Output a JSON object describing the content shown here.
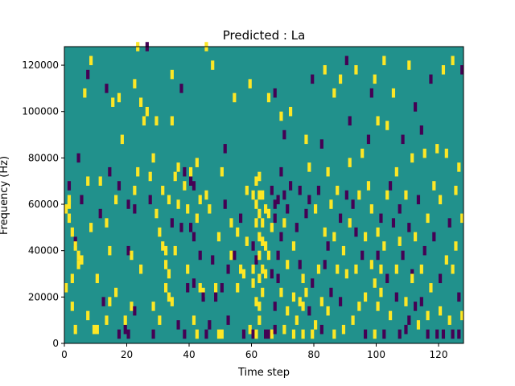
{
  "chart_data": {
    "type": "heatmap",
    "title": "Predicted : La",
    "xlabel": "Time step",
    "ylabel": "Frequency (Hz)",
    "xlim": [
      0,
      128
    ],
    "ylim": [
      0,
      128000
    ],
    "x_ticks": [
      "0",
      "20",
      "40",
      "60",
      "80",
      "100",
      "120"
    ],
    "x_tick_values": [
      0,
      20,
      40,
      60,
      80,
      100,
      120
    ],
    "y_ticks": [
      "0",
      "20000",
      "40000",
      "60000",
      "80000",
      "100000",
      "120000"
    ],
    "y_tick_values": [
      0,
      20000,
      40000,
      60000,
      80000,
      100000,
      120000
    ],
    "grid": false,
    "colormap": {
      "-1": "#440154",
      "0": "#21918c",
      "1": "#fde725"
    },
    "background_value": 0,
    "bin_height_hz": 1000,
    "cells": [
      [
        0,
        22,
        1
      ],
      [
        0,
        56,
        1
      ],
      [
        1,
        58,
        1
      ],
      [
        1,
        60,
        1
      ],
      [
        1,
        66,
        -1
      ],
      [
        1,
        52,
        1
      ],
      [
        2,
        46,
        1
      ],
      [
        2,
        26,
        1
      ],
      [
        2,
        14,
        1
      ],
      [
        3,
        42,
        -1
      ],
      [
        3,
        40,
        1
      ],
      [
        3,
        4,
        1
      ],
      [
        4,
        32,
        1
      ],
      [
        4,
        36,
        1
      ],
      [
        4,
        78,
        -1
      ],
      [
        5,
        60,
        -1
      ],
      [
        5,
        34,
        1
      ],
      [
        6,
        106,
        1
      ],
      [
        7,
        114,
        -1
      ],
      [
        7,
        68,
        1
      ],
      [
        7,
        10,
        1
      ],
      [
        8,
        120,
        1
      ],
      [
        8,
        48,
        1
      ],
      [
        9,
        4,
        1
      ],
      [
        10,
        4,
        1
      ],
      [
        10,
        26,
        1
      ],
      [
        11,
        68,
        1
      ],
      [
        11,
        54,
        -1
      ],
      [
        12,
        16,
        -1
      ],
      [
        13,
        108,
        -1
      ],
      [
        13,
        50,
        1
      ],
      [
        13,
        8,
        1
      ],
      [
        14,
        72,
        -1
      ],
      [
        14,
        38,
        1
      ],
      [
        14,
        16,
        1
      ],
      [
        15,
        102,
        1
      ],
      [
        16,
        60,
        1
      ],
      [
        16,
        20,
        1
      ],
      [
        17,
        2,
        -1
      ],
      [
        17,
        66,
        -1
      ],
      [
        17,
        104,
        1
      ],
      [
        18,
        86,
        1
      ],
      [
        19,
        4,
        -1
      ],
      [
        19,
        8,
        1
      ],
      [
        20,
        2,
        -1
      ],
      [
        20,
        58,
        -1
      ],
      [
        20,
        38,
        -1
      ],
      [
        21,
        36,
        1
      ],
      [
        21,
        14,
        1
      ],
      [
        22,
        12,
        -1
      ],
      [
        22,
        64,
        1
      ],
      [
        22,
        110,
        1
      ],
      [
        22,
        56,
        -1
      ],
      [
        23,
        126,
        1
      ],
      [
        23,
        72,
        1
      ],
      [
        24,
        30,
        1
      ],
      [
        24,
        102,
        1
      ],
      [
        25,
        94,
        1
      ],
      [
        26,
        98,
        1
      ],
      [
        26,
        126,
        -1
      ],
      [
        27,
        70,
        1
      ],
      [
        27,
        60,
        -1
      ],
      [
        28,
        14,
        1
      ],
      [
        28,
        78,
        1
      ],
      [
        28,
        2,
        -1
      ],
      [
        29,
        94,
        1
      ],
      [
        29,
        54,
        1
      ],
      [
        30,
        8,
        1
      ],
      [
        30,
        46,
        1
      ],
      [
        31,
        64,
        1
      ],
      [
        31,
        40,
        1
      ],
      [
        32,
        38,
        1
      ],
      [
        32,
        22,
        1
      ],
      [
        32,
        32,
        1
      ],
      [
        33,
        18,
        1
      ],
      [
        33,
        60,
        1
      ],
      [
        33,
        28,
        1
      ],
      [
        34,
        94,
        1
      ],
      [
        34,
        50,
        -1
      ],
      [
        34,
        16,
        1
      ],
      [
        34,
        114,
        1
      ],
      [
        35,
        70,
        1
      ],
      [
        35,
        38,
        1
      ],
      [
        36,
        58,
        1
      ],
      [
        36,
        74,
        1
      ],
      [
        36,
        6,
        -1
      ],
      [
        37,
        108,
        -1
      ],
      [
        37,
        48,
        -1
      ],
      [
        38,
        72,
        -1
      ],
      [
        38,
        66,
        1
      ],
      [
        38,
        2,
        -1
      ],
      [
        39,
        22,
        -1
      ],
      [
        39,
        56,
        1
      ],
      [
        39,
        30,
        1
      ],
      [
        40,
        68,
        -1
      ],
      [
        40,
        48,
        -1
      ],
      [
        40,
        72,
        1
      ],
      [
        41,
        66,
        -1
      ],
      [
        41,
        24,
        -1
      ],
      [
        41,
        8,
        1
      ],
      [
        41,
        44,
        -1
      ],
      [
        42,
        76,
        1
      ],
      [
        42,
        2,
        1
      ],
      [
        42,
        52,
        1
      ],
      [
        43,
        36,
        -1
      ],
      [
        43,
        22,
        1
      ],
      [
        43,
        60,
        1
      ],
      [
        44,
        20,
        1
      ],
      [
        44,
        18,
        -1
      ],
      [
        45,
        2,
        -1
      ],
      [
        45,
        126,
        1
      ],
      [
        45,
        62,
        1
      ],
      [
        46,
        56,
        1
      ],
      [
        46,
        6,
        -1
      ],
      [
        47,
        118,
        1
      ],
      [
        47,
        34,
        -1
      ],
      [
        48,
        22,
        1
      ],
      [
        48,
        18,
        -1
      ],
      [
        49,
        2,
        1
      ],
      [
        49,
        44,
        1
      ],
      [
        50,
        72,
        1
      ],
      [
        50,
        2,
        1
      ],
      [
        50,
        22,
        -1
      ],
      [
        51,
        82,
        -1
      ],
      [
        51,
        58,
        -1
      ],
      [
        52,
        8,
        -1
      ],
      [
        52,
        30,
        -1
      ],
      [
        53,
        50,
        1
      ],
      [
        53,
        36,
        1
      ],
      [
        54,
        104,
        1
      ],
      [
        54,
        36,
        -1
      ],
      [
        55,
        22,
        1
      ],
      [
        55,
        46,
        1
      ],
      [
        56,
        30,
        1
      ],
      [
        56,
        52,
        -1
      ],
      [
        57,
        2,
        -1
      ],
      [
        57,
        28,
        1
      ],
      [
        58,
        64,
        1
      ],
      [
        58,
        42,
        1
      ],
      [
        59,
        110,
        1
      ],
      [
        59,
        4,
        1
      ],
      [
        60,
        62,
        1
      ],
      [
        60,
        2,
        -1
      ],
      [
        60,
        40,
        -1
      ],
      [
        60,
        24,
        1
      ],
      [
        60,
        30,
        1
      ],
      [
        61,
        68,
        1
      ],
      [
        61,
        58,
        1
      ],
      [
        61,
        50,
        1
      ],
      [
        61,
        34,
        -1
      ],
      [
        61,
        16,
        1
      ],
      [
        61,
        2,
        1
      ],
      [
        62,
        70,
        1
      ],
      [
        62,
        62,
        1
      ],
      [
        62,
        54,
        1
      ],
      [
        62,
        44,
        1
      ],
      [
        62,
        36,
        1
      ],
      [
        62,
        26,
        1
      ],
      [
        62,
        14,
        1
      ],
      [
        62,
        8,
        1
      ],
      [
        63,
        62,
        1
      ],
      [
        63,
        50,
        1
      ],
      [
        63,
        42,
        1
      ],
      [
        63,
        30,
        1
      ],
      [
        63,
        20,
        1
      ],
      [
        64,
        2,
        -1
      ],
      [
        64,
        56,
        1
      ],
      [
        64,
        40,
        1
      ],
      [
        64,
        28,
        1
      ],
      [
        65,
        54,
        1
      ],
      [
        65,
        36,
        1
      ],
      [
        65,
        104,
        1
      ],
      [
        65,
        2,
        -1
      ],
      [
        66,
        64,
        -1
      ],
      [
        66,
        48,
        1
      ],
      [
        66,
        28,
        -1
      ],
      [
        66,
        2,
        1
      ],
      [
        67,
        58,
        -1
      ],
      [
        67,
        14,
        -1
      ],
      [
        67,
        52,
        -1
      ],
      [
        67,
        106,
        -1
      ],
      [
        67,
        4,
        -1
      ],
      [
        68,
        36,
        -1
      ],
      [
        68,
        60,
        -1
      ],
      [
        68,
        26,
        -1
      ],
      [
        69,
        72,
        -1
      ],
      [
        69,
        44,
        -1
      ],
      [
        69,
        96,
        1
      ],
      [
        69,
        20,
        1
      ],
      [
        70,
        62,
        -1
      ],
      [
        70,
        4,
        1
      ],
      [
        70,
        50,
        1
      ],
      [
        70,
        88,
        -1
      ],
      [
        71,
        12,
        1
      ],
      [
        71,
        56,
        -1
      ],
      [
        71,
        32,
        1
      ],
      [
        72,
        66,
        -1
      ],
      [
        72,
        98,
        1
      ],
      [
        73,
        2,
        1
      ],
      [
        73,
        40,
        1
      ],
      [
        73,
        18,
        1
      ],
      [
        74,
        48,
        -1
      ],
      [
        74,
        8,
        1
      ],
      [
        75,
        64,
        -1
      ],
      [
        75,
        32,
        -1
      ],
      [
        75,
        16,
        1
      ],
      [
        76,
        2,
        1
      ],
      [
        76,
        14,
        1
      ],
      [
        76,
        26,
        1
      ],
      [
        77,
        20,
        1
      ],
      [
        77,
        86,
        1
      ],
      [
        77,
        54,
        -1
      ],
      [
        78,
        12,
        -1
      ],
      [
        78,
        74,
        1
      ],
      [
        78,
        60,
        -1
      ],
      [
        79,
        2,
        1
      ],
      [
        79,
        24,
        -1
      ],
      [
        79,
        112,
        -1
      ],
      [
        80,
        56,
        1
      ],
      [
        80,
        6,
        1
      ],
      [
        81,
        30,
        1
      ],
      [
        81,
        64,
        -1
      ],
      [
        82,
        16,
        1
      ],
      [
        82,
        84,
        -1
      ],
      [
        82,
        4,
        -1
      ],
      [
        83,
        46,
        1
      ],
      [
        83,
        116,
        1
      ],
      [
        83,
        32,
        -1
      ],
      [
        84,
        40,
        -1
      ],
      [
        84,
        72,
        1
      ],
      [
        84,
        12,
        1
      ],
      [
        85,
        20,
        -1
      ],
      [
        85,
        58,
        1
      ],
      [
        86,
        106,
        1
      ],
      [
        86,
        2,
        1
      ],
      [
        86,
        44,
        1
      ],
      [
        87,
        30,
        1
      ],
      [
        87,
        64,
        1
      ],
      [
        88,
        112,
        1
      ],
      [
        88,
        52,
        -1
      ],
      [
        88,
        16,
        -1
      ],
      [
        89,
        4,
        1
      ],
      [
        89,
        38,
        1
      ],
      [
        90,
        62,
        -1
      ],
      [
        90,
        28,
        1
      ],
      [
        90,
        120,
        -1
      ],
      [
        91,
        94,
        -1
      ],
      [
        91,
        50,
        1
      ],
      [
        91,
        76,
        1
      ],
      [
        92,
        8,
        1
      ],
      [
        92,
        58,
        -1
      ],
      [
        93,
        116,
        1
      ],
      [
        93,
        30,
        1
      ],
      [
        93,
        46,
        -1
      ],
      [
        94,
        62,
        1
      ],
      [
        94,
        14,
        1
      ],
      [
        95,
        36,
        -1
      ],
      [
        95,
        80,
        1
      ],
      [
        96,
        2,
        -1
      ],
      [
        96,
        18,
        1
      ],
      [
        96,
        44,
        1
      ],
      [
        97,
        86,
        -1
      ],
      [
        97,
        66,
        1
      ],
      [
        98,
        106,
        -1
      ],
      [
        98,
        56,
        1
      ],
      [
        98,
        32,
        1
      ],
      [
        99,
        112,
        1
      ],
      [
        99,
        24,
        1
      ],
      [
        99,
        2,
        1
      ],
      [
        100,
        46,
        1
      ],
      [
        100,
        94,
        1
      ],
      [
        100,
        36,
        -1
      ],
      [
        100,
        14,
        1
      ],
      [
        101,
        20,
        1
      ],
      [
        101,
        52,
        -1
      ],
      [
        101,
        30,
        1
      ],
      [
        102,
        120,
        1
      ],
      [
        102,
        2,
        -1
      ],
      [
        102,
        40,
        1
      ],
      [
        103,
        92,
        1
      ],
      [
        103,
        62,
        1
      ],
      [
        103,
        26,
        -1
      ],
      [
        104,
        10,
        1
      ],
      [
        104,
        66,
        -1
      ],
      [
        105,
        106,
        1
      ],
      [
        105,
        50,
        -1
      ],
      [
        106,
        30,
        1
      ],
      [
        106,
        72,
        1
      ],
      [
        106,
        18,
        -1
      ],
      [
        107,
        2,
        -1
      ],
      [
        107,
        56,
        -1
      ],
      [
        107,
        42,
        1
      ],
      [
        108,
        86,
        -1
      ],
      [
        108,
        36,
        -1
      ],
      [
        109,
        16,
        1
      ],
      [
        109,
        4,
        -1
      ],
      [
        109,
        62,
        1
      ],
      [
        110,
        118,
        1
      ],
      [
        110,
        48,
        -1
      ],
      [
        110,
        8,
        -1
      ],
      [
        111,
        28,
        -1
      ],
      [
        111,
        78,
        1
      ],
      [
        111,
        26,
        1
      ],
      [
        112,
        14,
        -1
      ],
      [
        112,
        44,
        1
      ],
      [
        112,
        100,
        -1
      ],
      [
        113,
        6,
        1
      ],
      [
        113,
        60,
        -1
      ],
      [
        114,
        90,
        -1
      ],
      [
        114,
        30,
        1
      ],
      [
        114,
        16,
        -1
      ],
      [
        115,
        80,
        1
      ],
      [
        115,
        38,
        -1
      ],
      [
        116,
        2,
        -1
      ],
      [
        116,
        52,
        1
      ],
      [
        116,
        10,
        1
      ],
      [
        117,
        112,
        -1
      ],
      [
        117,
        22,
        1
      ],
      [
        118,
        66,
        1
      ],
      [
        118,
        44,
        -1
      ],
      [
        119,
        82,
        1
      ],
      [
        119,
        2,
        -1
      ],
      [
        120,
        26,
        -1
      ],
      [
        120,
        60,
        1
      ],
      [
        120,
        12,
        1
      ],
      [
        121,
        2,
        -1
      ],
      [
        121,
        116,
        1
      ],
      [
        122,
        34,
        1
      ],
      [
        122,
        80,
        1
      ],
      [
        123,
        50,
        -1
      ],
      [
        123,
        8,
        1
      ],
      [
        124,
        120,
        1
      ],
      [
        124,
        30,
        1
      ],
      [
        124,
        2,
        -1
      ],
      [
        125,
        40,
        1
      ],
      [
        125,
        64,
        1
      ],
      [
        126,
        74,
        1
      ],
      [
        126,
        2,
        -1
      ],
      [
        126,
        18,
        -1
      ],
      [
        127,
        116,
        -1
      ],
      [
        127,
        52,
        1
      ],
      [
        127,
        10,
        1
      ]
    ]
  }
}
